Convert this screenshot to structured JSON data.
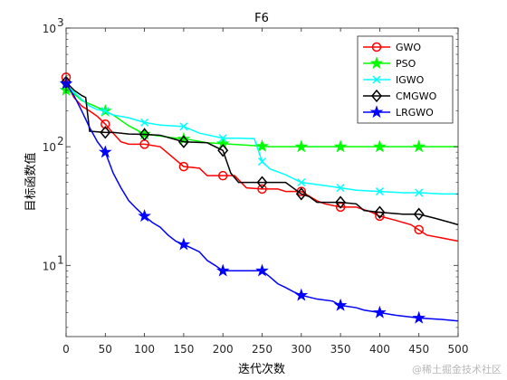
{
  "chart_data": {
    "type": "line",
    "title": "F6",
    "xlabel": "迭代次数",
    "ylabel": "目标函数值",
    "xlim": [
      0,
      500
    ],
    "ylim_log10": [
      0.4,
      3
    ],
    "y_scale": "log",
    "grid": false,
    "legend_position": "top-right",
    "x_ticks": [
      0,
      50,
      100,
      150,
      200,
      250,
      300,
      350,
      400,
      450,
      500
    ],
    "x_tick_labels": [
      "0",
      "50",
      "100",
      "150",
      "200",
      "250",
      "300",
      "350",
      "400",
      "450",
      "500"
    ],
    "y_ticks": [
      {
        "value": 10,
        "base": "10",
        "exp": "1"
      },
      {
        "value": 100,
        "base": "10",
        "exp": "2"
      },
      {
        "value": 1000,
        "base": "10",
        "exp": "3"
      }
    ],
    "series": [
      {
        "name": "GWO",
        "color": "#ff0000",
        "marker": "circle",
        "x": [
          0,
          5,
          10,
          20,
          30,
          40,
          50,
          60,
          70,
          80,
          100,
          120,
          130,
          150,
          170,
          180,
          200,
          215,
          230,
          250,
          270,
          280,
          300,
          320,
          330,
          350,
          370,
          390,
          400,
          420,
          440,
          460,
          480,
          500
        ],
        "y": [
          385,
          300,
          260,
          220,
          200,
          180,
          155,
          130,
          110,
          105,
          105,
          100,
          88,
          68,
          66,
          57,
          57,
          57,
          45,
          44,
          44,
          42,
          42,
          35,
          33,
          31,
          31,
          28,
          26,
          24,
          22,
          18,
          17,
          16
        ],
        "marker_x": [
          0,
          50,
          100,
          150,
          200,
          250,
          300,
          350,
          400,
          450
        ]
      },
      {
        "name": "PSO",
        "color": "#00ff00",
        "marker": "star",
        "x": [
          0,
          10,
          20,
          40,
          60,
          80,
          100,
          120,
          140,
          160,
          180,
          200,
          220,
          240,
          250,
          260,
          300,
          400,
          500
        ],
        "y": [
          300,
          280,
          245,
          215,
          185,
          150,
          128,
          123,
          118,
          114,
          108,
          106,
          104,
          102,
          101,
          100,
          100,
          100,
          100
        ],
        "marker_x": [
          0,
          50,
          100,
          150,
          200,
          250,
          300,
          350,
          400,
          450
        ]
      },
      {
        "name": "IGWO",
        "color": "#00ffff",
        "marker": "x",
        "x": [
          0,
          10,
          20,
          30,
          40,
          50,
          60,
          80,
          100,
          120,
          150,
          170,
          200,
          220,
          240,
          250,
          260,
          280,
          300,
          330,
          350,
          370,
          400,
          430,
          450,
          480,
          500
        ],
        "y": [
          330,
          290,
          250,
          220,
          205,
          200,
          185,
          175,
          160,
          152,
          148,
          130,
          118,
          118,
          117,
          75,
          65,
          58,
          50,
          47,
          45,
          43,
          42,
          41,
          41,
          40,
          40
        ],
        "marker_x": [
          0,
          50,
          100,
          150,
          200,
          250,
          300,
          350,
          400,
          450
        ]
      },
      {
        "name": "CMGWO",
        "color": "#000000",
        "marker": "diamond",
        "x": [
          0,
          10,
          20,
          25,
          30,
          50,
          60,
          80,
          100,
          120,
          150,
          180,
          200,
          210,
          220,
          250,
          280,
          300,
          310,
          320,
          350,
          370,
          380,
          400,
          430,
          450,
          470,
          490,
          500
        ],
        "y": [
          350,
          300,
          270,
          260,
          135,
          132,
          132,
          128,
          127,
          125,
          110,
          108,
          93,
          60,
          50,
          50,
          50,
          40,
          38,
          34,
          34,
          33,
          29,
          28,
          27,
          27,
          25,
          23,
          22
        ],
        "marker_x": [
          0,
          50,
          100,
          150,
          200,
          250,
          300,
          350,
          400,
          450
        ]
      },
      {
        "name": "LRGWO",
        "color": "#0000ff",
        "marker": "star",
        "x": [
          0,
          10,
          20,
          30,
          40,
          50,
          60,
          70,
          80,
          90,
          100,
          110,
          120,
          130,
          140,
          150,
          160,
          170,
          180,
          190,
          200,
          220,
          250,
          260,
          270,
          280,
          290,
          300,
          320,
          340,
          350,
          370,
          380,
          400,
          420,
          450,
          480,
          500
        ],
        "y": [
          340,
          270,
          200,
          145,
          110,
          90,
          60,
          45,
          35,
          30,
          26,
          23,
          21,
          18,
          16,
          15,
          14,
          13,
          11,
          10,
          9,
          9,
          9,
          8,
          7,
          6.5,
          6,
          5.6,
          5.2,
          5,
          4.6,
          4.4,
          4.2,
          4,
          3.8,
          3.6,
          3.5,
          3.4
        ],
        "marker_x": [
          0,
          50,
          100,
          150,
          200,
          250,
          300,
          350,
          400,
          450
        ]
      }
    ]
  },
  "watermark": "@稀土掘金技术社区"
}
